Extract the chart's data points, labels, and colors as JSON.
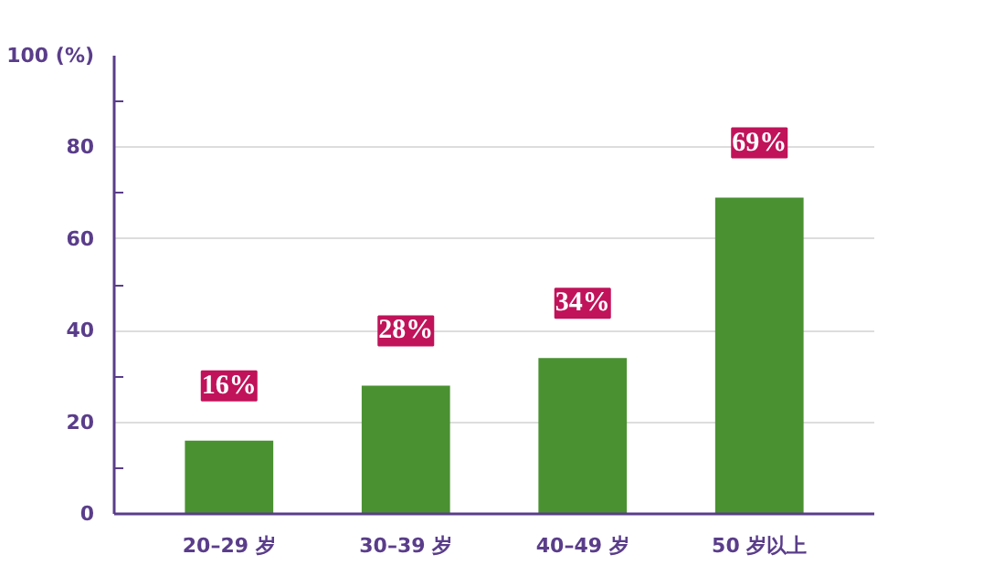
{
  "chart_data": {
    "type": "bar",
    "categories": [
      "20–29 岁",
      "30–39 岁",
      "40–49 岁",
      "50 岁以上"
    ],
    "values": [
      16,
      28,
      34,
      69
    ],
    "value_labels": [
      "16%",
      "28%",
      "34%",
      "69%"
    ],
    "color": "#4a9132",
    "ylim": [
      0,
      100
    ],
    "yticks": [
      0,
      20,
      40,
      60,
      80,
      {
        "value": 100,
        "label": "100 (%)"
      }
    ],
    "grid": "y"
  }
}
